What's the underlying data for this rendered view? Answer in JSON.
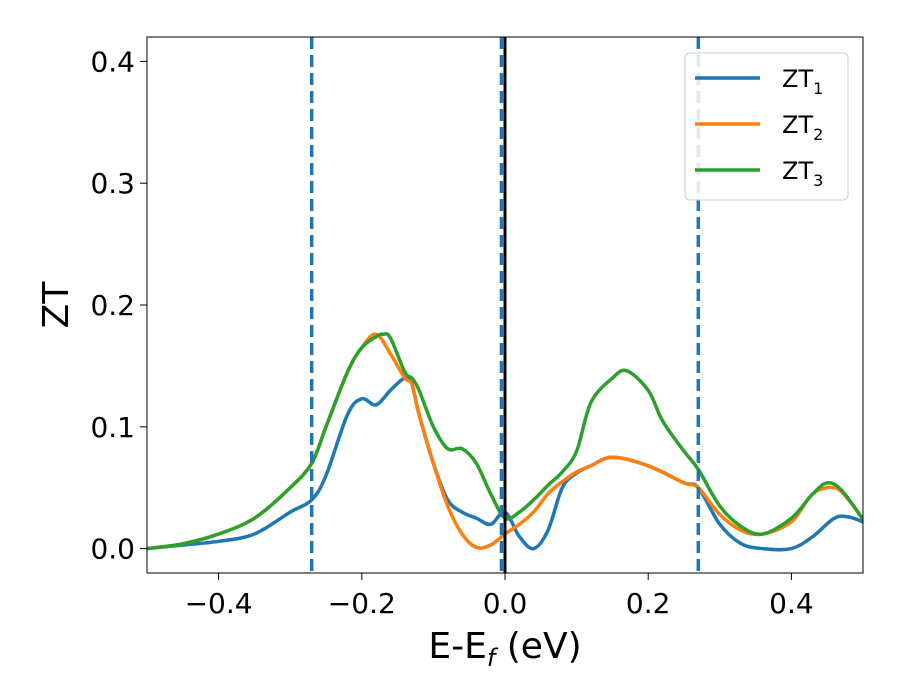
{
  "chart_data": {
    "type": "line",
    "title": "",
    "xlabel": "E-E",
    "xlabel_subscript": "f",
    "xlabel_unit": " (eV)",
    "ylabel": "ZT",
    "xlim": [
      -0.5,
      0.5
    ],
    "ylim": [
      -0.02,
      0.42
    ],
    "xticks": [
      -0.4,
      -0.2,
      0.0,
      0.2,
      0.4
    ],
    "xtick_labels": [
      "−0.4",
      "−0.2",
      "0.0",
      "0.2",
      "0.4"
    ],
    "yticks": [
      0.0,
      0.1,
      0.2,
      0.3,
      0.4
    ],
    "ytick_labels": [
      "0.0",
      "0.1",
      "0.2",
      "0.3",
      "0.4"
    ],
    "grid": false,
    "legend": "top-right",
    "vlines": [
      {
        "x": -0.27,
        "style": "dashed",
        "color": "#1f77b4"
      },
      {
        "x": -0.005,
        "style": "dashed",
        "color": "#1f77b4"
      },
      {
        "x": 0.0,
        "style": "solid",
        "color": "#000000"
      },
      {
        "x": 0.27,
        "style": "dashed",
        "color": "#1f77b4"
      }
    ],
    "series": [
      {
        "name": "ZT",
        "subscript": "1",
        "color": "#1f77b4",
        "x": [
          -0.5,
          -0.45,
          -0.4,
          -0.35,
          -0.3,
          -0.27,
          -0.25,
          -0.22,
          -0.2,
          -0.18,
          -0.16,
          -0.14,
          -0.13,
          -0.12,
          -0.1,
          -0.08,
          -0.06,
          -0.04,
          -0.02,
          0.0,
          0.02,
          0.04,
          0.06,
          0.08,
          0.1,
          0.12,
          0.15,
          0.2,
          0.25,
          0.27,
          0.3,
          0.33,
          0.36,
          0.4,
          0.43,
          0.46,
          0.48,
          0.5
        ],
        "y": [
          0.0,
          0.003,
          0.006,
          0.012,
          0.03,
          0.04,
          0.06,
          0.11,
          0.123,
          0.118,
          0.13,
          0.14,
          0.135,
          0.11,
          0.07,
          0.04,
          0.03,
          0.025,
          0.02,
          0.03,
          0.01,
          0.0,
          0.015,
          0.05,
          0.062,
          0.068,
          0.075,
          0.068,
          0.054,
          0.05,
          0.02,
          0.004,
          0.0,
          0.0,
          0.01,
          0.025,
          0.026,
          0.022
        ]
      },
      {
        "name": "ZT",
        "subscript": "2",
        "color": "#ff7f0e",
        "x": [
          -0.5,
          -0.45,
          -0.4,
          -0.35,
          -0.3,
          -0.27,
          -0.25,
          -0.22,
          -0.2,
          -0.18,
          -0.16,
          -0.14,
          -0.13,
          -0.12,
          -0.1,
          -0.08,
          -0.06,
          -0.04,
          -0.02,
          0.0,
          0.02,
          0.04,
          0.06,
          0.08,
          0.1,
          0.12,
          0.15,
          0.2,
          0.25,
          0.27,
          0.3,
          0.33,
          0.36,
          0.4,
          0.43,
          0.46,
          0.48,
          0.5
        ],
        "y": [
          0.0,
          0.004,
          0.012,
          0.025,
          0.05,
          0.07,
          0.1,
          0.145,
          0.165,
          0.176,
          0.16,
          0.14,
          0.135,
          0.11,
          0.07,
          0.035,
          0.012,
          0.001,
          0.003,
          0.012,
          0.02,
          0.03,
          0.045,
          0.055,
          0.063,
          0.068,
          0.075,
          0.068,
          0.054,
          0.05,
          0.028,
          0.015,
          0.012,
          0.022,
          0.045,
          0.05,
          0.04,
          0.024
        ]
      },
      {
        "name": "ZT",
        "subscript": "3",
        "color": "#2ca02c",
        "x": [
          -0.5,
          -0.45,
          -0.4,
          -0.35,
          -0.3,
          -0.27,
          -0.25,
          -0.22,
          -0.2,
          -0.18,
          -0.17,
          -0.16,
          -0.14,
          -0.13,
          -0.12,
          -0.1,
          -0.08,
          -0.06,
          -0.04,
          -0.02,
          0.0,
          0.02,
          0.04,
          0.06,
          0.08,
          0.1,
          0.12,
          0.15,
          0.17,
          0.2,
          0.22,
          0.25,
          0.27,
          0.3,
          0.33,
          0.36,
          0.4,
          0.43,
          0.45,
          0.47,
          0.5
        ],
        "y": [
          0.0,
          0.004,
          0.012,
          0.025,
          0.05,
          0.07,
          0.1,
          0.145,
          0.165,
          0.174,
          0.176,
          0.173,
          0.145,
          0.14,
          0.13,
          0.1,
          0.082,
          0.082,
          0.07,
          0.045,
          0.025,
          0.03,
          0.04,
          0.052,
          0.063,
          0.08,
          0.12,
          0.14,
          0.146,
          0.13,
          0.105,
          0.08,
          0.065,
          0.035,
          0.018,
          0.012,
          0.025,
          0.045,
          0.054,
          0.048,
          0.024
        ]
      }
    ]
  }
}
